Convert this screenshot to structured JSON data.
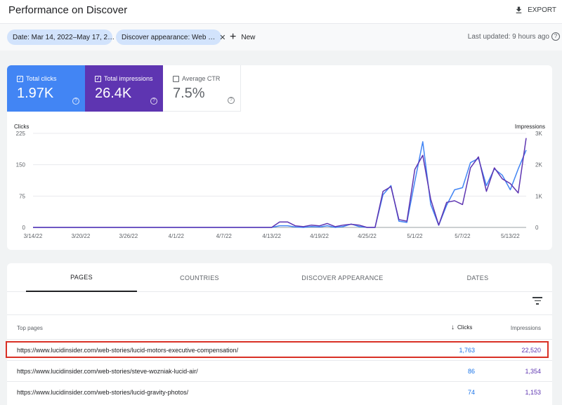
{
  "header": {
    "title": "Performance on Discover",
    "export_label": "EXPORT"
  },
  "filters": {
    "date_chip": "Date: Mar 14, 2022–May 17, 2…",
    "appearance_chip": "Discover appearance: Web …",
    "new_label": "New",
    "last_updated": "Last updated: 9 hours ago"
  },
  "metrics": {
    "clicks": {
      "label": "Total clicks",
      "value": "1.97K"
    },
    "impressions": {
      "label": "Total impressions",
      "value": "26.4K"
    },
    "ctr": {
      "label": "Average CTR",
      "value": "7.5%"
    }
  },
  "colors": {
    "clicks": "#4285f4",
    "impressions": "#5e35b1",
    "highlight": "#d93025"
  },
  "chart_data": {
    "type": "line",
    "y_left_label": "Clicks",
    "y_right_label": "Impressions",
    "y_left_ticks": [
      "225",
      "150",
      "75",
      "0"
    ],
    "y_right_ticks": [
      "3K",
      "2K",
      "1K",
      "0"
    ],
    "ylim_left": [
      0,
      225
    ],
    "ylim_right": [
      0,
      3000
    ],
    "x_tick_labels": [
      "3/14/22",
      "3/20/22",
      "3/26/22",
      "4/1/22",
      "4/7/22",
      "4/13/22",
      "4/19/22",
      "4/25/22",
      "5/1/22",
      "5/7/22",
      "5/13/22"
    ],
    "x_tick_indices": [
      0,
      6,
      12,
      18,
      24,
      30,
      36,
      42,
      48,
      54,
      60
    ],
    "grid": true,
    "series": [
      {
        "name": "Clicks",
        "axis": "left",
        "values": [
          0,
          0,
          0,
          0,
          0,
          0,
          0,
          0,
          0,
          0,
          0,
          0,
          0,
          0,
          0,
          0,
          0,
          0,
          0,
          0,
          0,
          0,
          0,
          0,
          0,
          0,
          0,
          0,
          0,
          0,
          0,
          4,
          4,
          1,
          0,
          2,
          1,
          4,
          0,
          2,
          8,
          2,
          0,
          0,
          78,
          100,
          15,
          12,
          110,
          205,
          55,
          5,
          53,
          90,
          95,
          155,
          165,
          100,
          140,
          125,
          90,
          140,
          185
        ]
      },
      {
        "name": "Impressions",
        "axis": "right",
        "values": [
          0,
          0,
          0,
          0,
          0,
          0,
          0,
          0,
          0,
          0,
          0,
          0,
          0,
          0,
          0,
          0,
          0,
          0,
          0,
          0,
          0,
          0,
          0,
          0,
          0,
          0,
          0,
          0,
          0,
          0,
          0,
          175,
          175,
          50,
          25,
          75,
          50,
          125,
          25,
          75,
          100,
          75,
          0,
          0,
          1150,
          1300,
          250,
          200,
          1850,
          2300,
          900,
          75,
          800,
          850,
          730,
          1900,
          2250,
          1150,
          1900,
          1550,
          1400,
          1100,
          2850
        ]
      }
    ]
  },
  "tabs": [
    "PAGES",
    "COUNTRIES",
    "DISCOVER APPEARANCE",
    "DATES"
  ],
  "table": {
    "col_pages": "Top pages",
    "col_clicks": "Clicks",
    "col_impressions": "Impressions",
    "rows": [
      {
        "url": "https://www.lucidinsider.com/web-stories/lucid-motors-executive-compensation/",
        "clicks": "1,763",
        "impressions": "22,520"
      },
      {
        "url": "https://www.lucidinsider.com/web-stories/steve-wozniak-lucid-air/",
        "clicks": "86",
        "impressions": "1,354"
      },
      {
        "url": "https://www.lucidinsider.com/web-stories/lucid-gravity-photos/",
        "clicks": "74",
        "impressions": "1,153"
      }
    ]
  }
}
